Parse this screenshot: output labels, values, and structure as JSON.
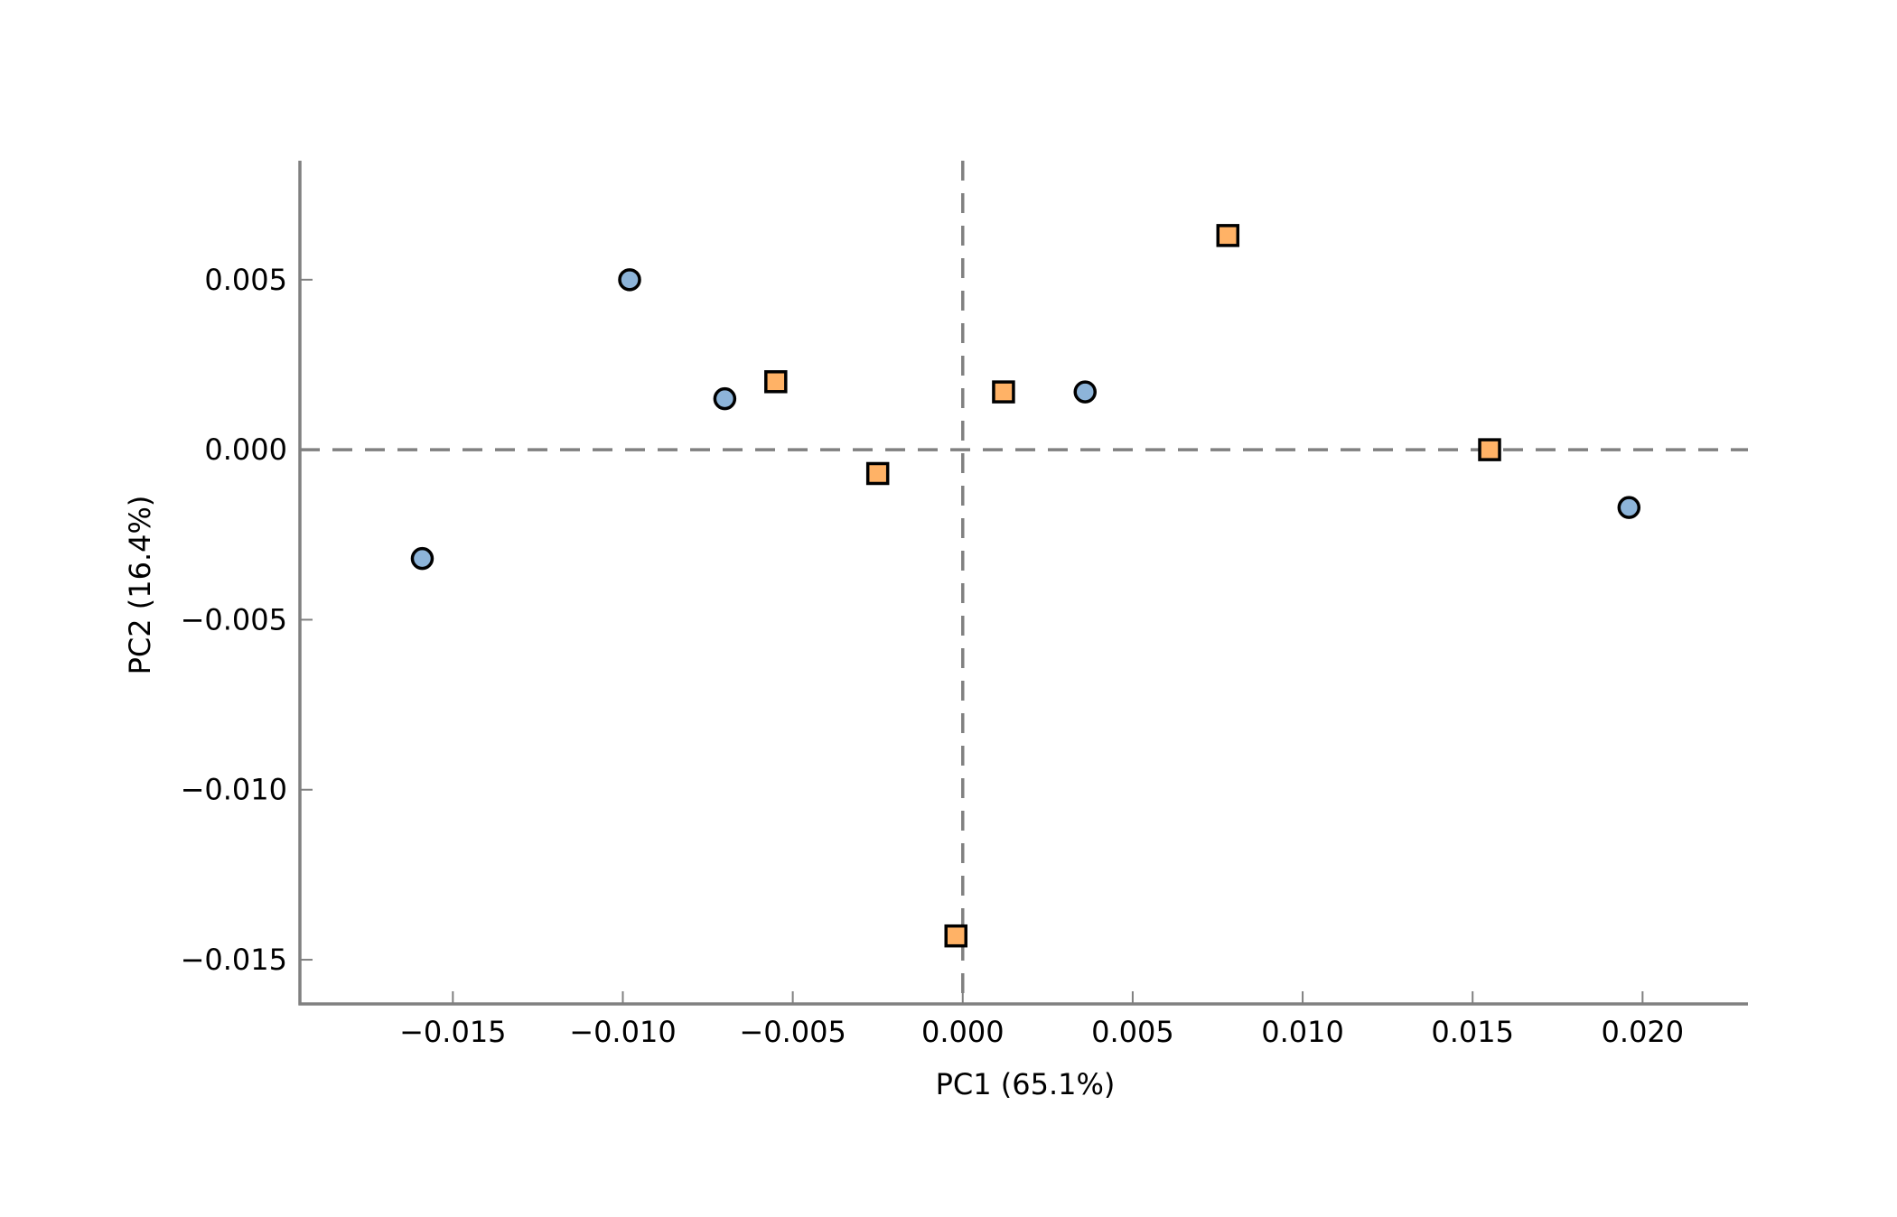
{
  "chart_data": {
    "type": "scatter",
    "title": "",
    "xlabel": "PC1 (65.1%)",
    "ylabel": "PC2 (16.4%)",
    "xlim": [
      -0.0195,
      0.0231
    ],
    "ylim": [
      -0.0163,
      0.0085
    ],
    "xticks": [
      -0.015,
      -0.01,
      -0.005,
      0.0,
      0.005,
      0.01,
      0.015,
      0.02
    ],
    "xtick_labels": [
      "−0.015",
      "−0.010",
      "−0.005",
      "0.000",
      "0.005",
      "0.010",
      "0.015",
      "0.020"
    ],
    "yticks": [
      0.005,
      0.0,
      -0.005,
      -0.01,
      -0.015
    ],
    "ytick_labels": [
      "0.005",
      "0.000",
      "−0.005",
      "−0.010",
      "−0.015"
    ],
    "reference_lines": {
      "x": 0.0,
      "y": 0.0,
      "style": "dashed"
    },
    "grid": false,
    "legend": null,
    "series": [
      {
        "marker": "circle",
        "color": "#8db4d9",
        "edge_color": "#000000",
        "points": [
          {
            "x": -0.0159,
            "y": -0.0032
          },
          {
            "x": -0.0098,
            "y": 0.005
          },
          {
            "x": -0.007,
            "y": 0.0015
          },
          {
            "x": 0.0036,
            "y": 0.0017
          },
          {
            "x": 0.0196,
            "y": -0.0017
          }
        ]
      },
      {
        "marker": "square",
        "color": "#ffb266",
        "edge_color": "#000000",
        "points": [
          {
            "x": -0.0055,
            "y": 0.002
          },
          {
            "x": -0.0025,
            "y": -0.0007
          },
          {
            "x": -0.0002,
            "y": -0.0143
          },
          {
            "x": 0.0012,
            "y": 0.0017
          },
          {
            "x": 0.0078,
            "y": 0.0063
          },
          {
            "x": 0.0155,
            "y": 0.0
          }
        ]
      }
    ]
  },
  "colors": {
    "axis": "#808080",
    "reference_line": "#808080"
  }
}
